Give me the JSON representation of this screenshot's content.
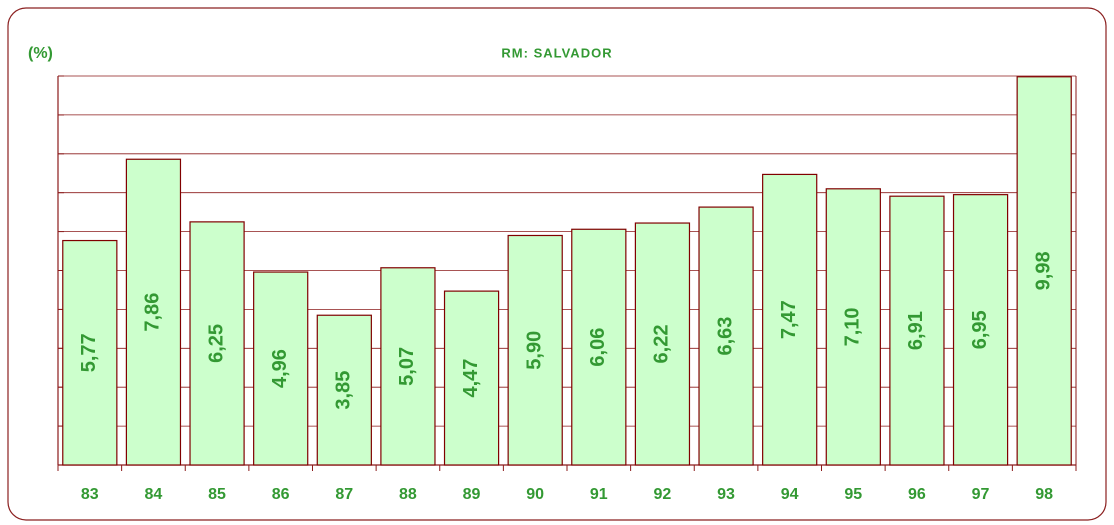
{
  "chart_data": {
    "type": "bar",
    "title": "RM: SALVADOR",
    "y_label": "(%)",
    "categories": [
      "83",
      "84",
      "85",
      "86",
      "87",
      "88",
      "89",
      "90",
      "91",
      "92",
      "93",
      "94",
      "95",
      "96",
      "97",
      "98"
    ],
    "values": [
      5.77,
      7.86,
      6.25,
      4.96,
      3.85,
      5.07,
      4.47,
      5.9,
      6.06,
      6.22,
      6.63,
      7.47,
      7.1,
      6.91,
      6.95,
      9.98
    ],
    "value_labels": [
      "5,77",
      "7,86",
      "6,25",
      "4,96",
      "3,85",
      "5,07",
      "4,47",
      "5,90",
      "6,06",
      "6,22",
      "6,63",
      "7,47",
      "7,10",
      "6,91",
      "6,95",
      "9,98"
    ],
    "color": "#ccffcc",
    "ylim": [
      0,
      10
    ],
    "yticks": [
      0,
      1,
      2,
      3,
      4,
      5,
      6,
      7,
      8,
      9,
      10
    ],
    "grid": true
  }
}
